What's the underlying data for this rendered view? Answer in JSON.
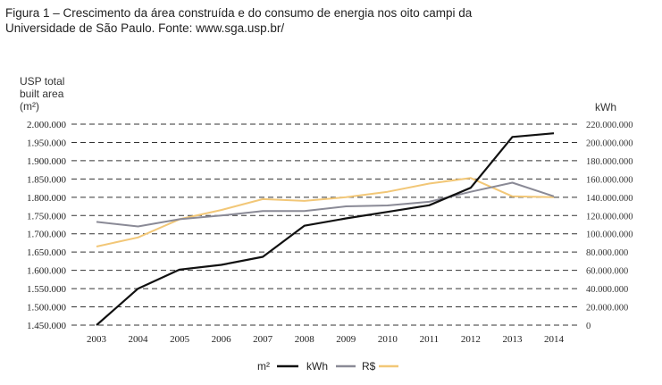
{
  "caption_line1": "Figura 1 – Crescimento da área construída e do consumo de energia nos oito campi da",
  "caption_line2": "Universidade de São Paulo. Fonte: www.sga.usp.br/",
  "chart_data": {
    "type": "line",
    "title": "",
    "ylabel_left_lines": [
      "USP total",
      "built area",
      "(m²)"
    ],
    "ylabel_right": "kWh",
    "x": [
      "2003",
      "2004",
      "2005",
      "2006",
      "2007",
      "2008",
      "2009",
      "2010",
      "2011",
      "2012",
      "2013",
      "2014"
    ],
    "ylim_left": [
      1450000,
      2000000
    ],
    "yticks_left": [
      "1.450.000",
      "1.500.000",
      "1.550.000",
      "1.600.000",
      "1.650.000",
      "1.700.000",
      "1.750.000",
      "1.800.000",
      "1.850.000",
      "1.900.000",
      "1.950.000",
      "2.000.000"
    ],
    "ylim_right": [
      0,
      220000000
    ],
    "yticks_right": [
      "0",
      "20.000.000",
      "40.000.000",
      "60.000.000",
      "80.000.000",
      "100.000.000",
      "120.000.000",
      "140.000.000",
      "160.000.000",
      "180.000.000",
      "200.000.000",
      "220.000.000"
    ],
    "grid": "horizontal dashed",
    "legend_position": "bottom-center",
    "series": [
      {
        "name": "m²",
        "axis": "left",
        "color": "#111111",
        "values": [
          1450000,
          1550000,
          1602000,
          1615000,
          1637000,
          1722000,
          1742000,
          1760000,
          1778000,
          1826000,
          1965000,
          1975000
        ]
      },
      {
        "name": "kWh",
        "axis": "right",
        "color": "#8a8a96",
        "values": [
          113000000,
          108000000,
          116000000,
          120000000,
          125000000,
          125000000,
          130000000,
          131000000,
          135000000,
          146000000,
          156000000,
          141000000
        ]
      },
      {
        "name": "R$",
        "axis": "right",
        "color": "#f2c777",
        "values": [
          86000000,
          96000000,
          116000000,
          126000000,
          138000000,
          136000000,
          140000000,
          146000000,
          155000000,
          161000000,
          141000000,
          140000000
        ]
      }
    ]
  }
}
